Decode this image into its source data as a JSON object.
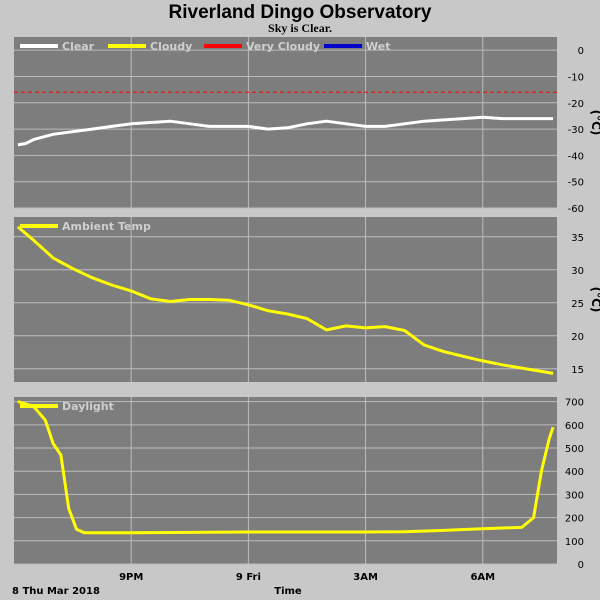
{
  "header": {
    "title": "Riverland Dingo Observatory",
    "subtitle": "Sky is Clear."
  },
  "x_axis": {
    "label": "Time",
    "start_label": "8 Thu Mar 2018",
    "range_hours": [
      18.0,
      31.9
    ],
    "ticks": [
      {
        "hour": 21,
        "label": "9PM"
      },
      {
        "hour": 24,
        "label": "9 Fri"
      },
      {
        "hour": 27,
        "label": "3AM"
      },
      {
        "hour": 30,
        "label": "6AM"
      }
    ]
  },
  "colors": {
    "plot_bg": "#7d7d7d",
    "page_bg": "#c8c8c8",
    "grid": "#bdbdbd",
    "clear": "#ffffff",
    "cloudy": "#ffff00",
    "very_cloudy": "#ff0000",
    "wet": "#0000cc"
  },
  "chart_data": [
    {
      "type": "line",
      "name": "sky",
      "ylim": [
        -60,
        5
      ],
      "yticks": [
        0,
        -10,
        -20,
        -30,
        -40,
        -50,
        -60
      ],
      "unit": "(°C)",
      "legend": [
        {
          "name": "Clear",
          "color": "#ffffff",
          "style": "solid"
        },
        {
          "name": "Cloudy",
          "color": "#ffff00",
          "style": "solid"
        },
        {
          "name": "Very Cloudy",
          "color": "#ff0000",
          "style": "solid"
        },
        {
          "name": "Wet",
          "color": "#0000cc",
          "style": "solid"
        }
      ],
      "threshold": {
        "value": -16,
        "color": "#ff0000",
        "style": "dashed"
      },
      "series": [
        {
          "name": "Clear",
          "color": "#ffffff",
          "x": [
            18.1,
            18.3,
            18.5,
            19.0,
            19.5,
            20.0,
            20.5,
            21.0,
            21.5,
            22.0,
            22.5,
            23.0,
            23.5,
            24.0,
            24.5,
            25.0,
            25.5,
            26.0,
            26.5,
            27.0,
            27.5,
            28.0,
            28.5,
            29.0,
            29.5,
            30.0,
            30.5,
            31.0,
            31.5,
            31.8
          ],
          "y": [
            -36,
            -35.5,
            -34,
            -32,
            -31,
            -30,
            -29,
            -28,
            -27.5,
            -27,
            -28,
            -29,
            -29,
            -29,
            -30,
            -29.5,
            -28,
            -27,
            -28,
            -29,
            -29,
            -28,
            -27,
            -26.5,
            -26,
            -25.5,
            -26,
            -26,
            -26,
            -26
          ]
        }
      ]
    },
    {
      "type": "line",
      "name": "ambient",
      "ylim": [
        13,
        38
      ],
      "yticks": [
        35,
        30,
        25,
        20,
        15
      ],
      "unit": "(°C)",
      "legend": [
        {
          "name": "Ambient Temp",
          "color": "#ffff00",
          "style": "solid"
        }
      ],
      "series": [
        {
          "name": "Ambient Temp",
          "color": "#ffff00",
          "x": [
            18.1,
            18.5,
            19.0,
            19.5,
            20.0,
            20.5,
            21.0,
            21.5,
            22.0,
            22.5,
            23.0,
            23.5,
            24.0,
            24.5,
            25.0,
            25.5,
            26.0,
            26.5,
            27.0,
            27.5,
            28.0,
            28.5,
            29.0,
            29.5,
            30.0,
            30.5,
            31.0,
            31.5,
            31.8
          ],
          "y": [
            36.5,
            34.5,
            31.8,
            30.2,
            28.8,
            27.7,
            26.8,
            25.6,
            25.2,
            25.5,
            25.5,
            25.4,
            24.7,
            23.8,
            23.3,
            22.6,
            20.9,
            21.5,
            21.2,
            21.4,
            20.8,
            18.6,
            17.6,
            16.9,
            16.2,
            15.6,
            15.1,
            14.6,
            14.3
          ]
        }
      ]
    },
    {
      "type": "line",
      "name": "daylight",
      "ylim": [
        0,
        720
      ],
      "yticks": [
        700,
        600,
        500,
        400,
        300,
        200,
        100,
        0
      ],
      "unit": "",
      "legend": [
        {
          "name": "Daylight",
          "color": "#ffff00",
          "style": "solid"
        }
      ],
      "series": [
        {
          "name": "Daylight",
          "color": "#ffff00",
          "x": [
            18.1,
            18.5,
            18.8,
            19.0,
            19.2,
            19.4,
            19.6,
            19.8,
            20.0,
            21.0,
            22.0,
            23.0,
            24.0,
            25.0,
            26.0,
            27.0,
            28.0,
            29.0,
            30.0,
            30.5,
            31.0,
            31.3,
            31.5,
            31.7,
            31.8
          ],
          "y": [
            700,
            680,
            620,
            520,
            470,
            240,
            150,
            135,
            135,
            135,
            136,
            137,
            138,
            138,
            138,
            138,
            139,
            145,
            152,
            155,
            158,
            200,
            400,
            540,
            590
          ]
        }
      ]
    }
  ]
}
